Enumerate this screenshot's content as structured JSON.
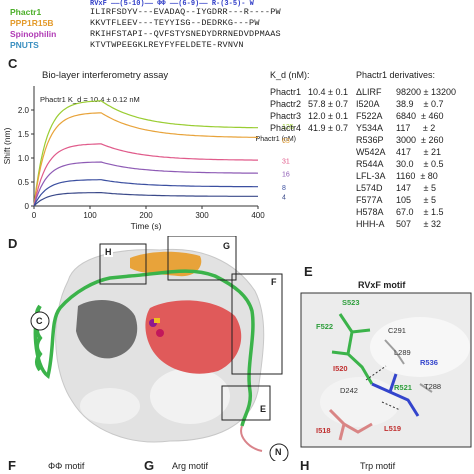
{
  "seq_header": {
    "motifs": "RVxF ——(5-10)—— ΦΦ ——(6-9)—— R-(3-5)- W"
  },
  "sequences": [
    {
      "name": "Phactr1",
      "seq": "ILIRFSDYV---EVADAQ--IYGDRR---R----PW",
      "color": "#4caf2a"
    },
    {
      "name": "PPP1R15B",
      "seq": "KKVTFLEEV---TEYYISG--DEDRKG---PW",
      "color": "#e39a2a"
    },
    {
      "name": "Spinophilin",
      "seq": "RKIHFSTAPI--QVFSTYSNEDYDRRNEDVDPMAAS",
      "color": "#b03ab5"
    },
    {
      "name": "PNUTS",
      "seq": "KTVTWPEEGKLREYFYFELDETE-RVNVN",
      "color": "#3a8fc0"
    }
  ],
  "panels": {
    "C": "C",
    "D": "D",
    "E": "E",
    "F": "F",
    "G": "G",
    "H": "H"
  },
  "chart_data": {
    "type": "line",
    "title": "Bio-layer interferometry assay",
    "annotation": "Phactr1 K_d = 10.4 ± 0.12 nM",
    "xlabel": "Time (s)",
    "ylabel": "Shift (nm)",
    "xlim": [
      0,
      400
    ],
    "ylim": [
      0,
      2.5
    ],
    "xticks": [
      "0",
      "100",
      "200",
      "300",
      "400"
    ],
    "yticks": [
      "0",
      "0.5",
      "1.0",
      "1.5",
      "2.0"
    ],
    "legend_title": "Phactr1 (nM)",
    "series": [
      {
        "name": "125",
        "color": "#9acd32",
        "plateau": 2.2,
        "end": 1.62
      },
      {
        "name": "63",
        "color": "#e8a33a",
        "plateau": 1.95,
        "end": 1.42
      },
      {
        "name": "31",
        "color": "#e05a8a",
        "plateau": 1.3,
        "end": 0.95
      },
      {
        "name": "16",
        "color": "#8e5bb5",
        "plateau": 0.92,
        "end": 0.68
      },
      {
        "name": "8",
        "color": "#3b4fa0",
        "plateau": 0.55,
        "end": 0.4
      },
      {
        "name": "4",
        "color": "#3b4a8a",
        "plateau": 0.28,
        "end": 0.2
      }
    ]
  },
  "kd_table": {
    "header": "K_d (nM):",
    "rows": [
      {
        "name": "Phactr1",
        "value": "10.4 ± 0.1"
      },
      {
        "name": "Phactr2",
        "value": "57.8 ± 0.7"
      },
      {
        "name": "Phactr3",
        "value": "12.0 ± 0.1"
      },
      {
        "name": "Phactr4",
        "value": "41.9 ± 0.7"
      }
    ]
  },
  "derivatives": {
    "header": "Phactr1 derivatives:",
    "rows": [
      {
        "name": "ΔLIRF",
        "value": "98200 ± 13200"
      },
      {
        "name": "I520A",
        "value": "38.9    ± 0.7"
      },
      {
        "name": "F522A",
        "value": "6840  ± 460"
      },
      {
        "name": "Y534A",
        "value": "117     ± 2"
      },
      {
        "name": "R536P",
        "value": "3000  ± 260"
      },
      {
        "name": "W542A",
        "value": "417     ± 21"
      },
      {
        "name": "R544A",
        "value": "30.0    ± 0.5"
      },
      {
        "name": "LFL-3A",
        "value": "1160  ± 80"
      },
      {
        "name": "L574D",
        "value": "147     ± 5"
      },
      {
        "name": "F577A",
        "value": "105     ± 5"
      },
      {
        "name": "H578A",
        "value": "67.0    ± 1.5"
      },
      {
        "name": "HHH-A",
        "value": "507     ± 32"
      }
    ]
  },
  "structure_labels": {
    "H": "H",
    "G": "G",
    "F": "F",
    "E": "E",
    "C": "C",
    "N": "N"
  },
  "inset_E": {
    "title": "RVxF motif",
    "residues": [
      "S523",
      "F522",
      "C291",
      "L289",
      "R536",
      "I520",
      "R521",
      "T288",
      "D242",
      "I518",
      "L519"
    ]
  },
  "bottom": {
    "F": "F",
    "F_title": "ΦΦ motif",
    "G": "G",
    "G_title": "Arg motif",
    "H": "H",
    "H_title": "Trp motif"
  }
}
